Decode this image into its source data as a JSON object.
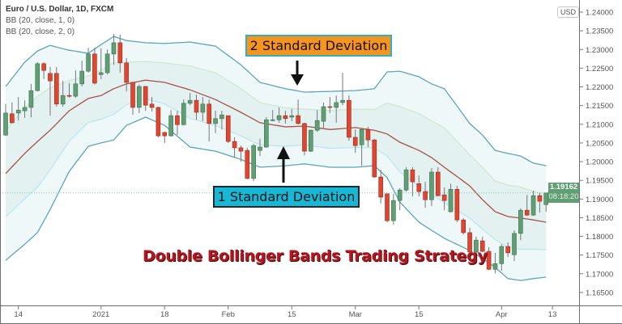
{
  "legend": {
    "symbol": "Euro / U.S. Dollar, 1D, FXCM",
    "indicator_1": "BB (20, close, 1, 0)",
    "indicator_2": "BB (20, close, 2, 0)"
  },
  "currency_badge": "USD",
  "last_price": {
    "value": "1.19162",
    "countdown": "08:18:20",
    "color": "#5f9f73"
  },
  "annotations": {
    "upper": "2 Standard Deviation",
    "lower": "1 Standard Deviation",
    "title": "Double Bollinger Bands Trading Strategy"
  },
  "colors": {
    "up": "#5f9f73",
    "down": "#e0452f",
    "outer_band": "#5aa5bb",
    "middle": "#a8504a",
    "inner_upper": "#cfe6d2",
    "inner_lower": "#bde4ee",
    "outer_fill": "#eff8f8",
    "inner_fill": "#e3f1f1",
    "annotation_upper_bg": "#f7941d",
    "annotation_lower_bg": "#16b8d6",
    "title": "#b3161e"
  },
  "chart_data": {
    "type": "candlestick",
    "y_axis": {
      "range": [
        1.1625,
        1.2425
      ],
      "ticks": [
        "1.24000",
        "1.23500",
        "1.23000",
        "1.22500",
        "1.22000",
        "1.21500",
        "1.21000",
        "1.20500",
        "1.20000",
        "1.19500",
        "1.19000",
        "1.18500",
        "1.18000",
        "1.17500",
        "1.17000",
        "1.16500"
      ],
      "side": "right"
    },
    "x_ticks": [
      {
        "label": "14",
        "date": "2020-12-14"
      },
      {
        "label": "2021",
        "date": "2021-01-04"
      },
      {
        "label": "18",
        "date": "2021-01-18"
      },
      {
        "label": "Feb",
        "date": "2021-02-01"
      },
      {
        "label": "15",
        "date": "2021-02-15"
      },
      {
        "label": "Mar",
        "date": "2021-03-01"
      },
      {
        "label": "15",
        "date": "2021-03-15"
      },
      {
        "label": "Apr",
        "date": "2021-04-01"
      },
      {
        "label": "13",
        "date": "2021-04-13"
      }
    ],
    "candles_columns": [
      "date",
      "open",
      "high",
      "low",
      "close"
    ],
    "candles": [
      [
        "2020-12-10",
        1.2071,
        1.2154,
        1.2069,
        1.213
      ],
      [
        "2020-12-11",
        1.2128,
        1.2158,
        1.2102,
        1.2104
      ],
      [
        "2020-12-14",
        1.213,
        1.2173,
        1.211,
        1.2138
      ],
      [
        "2020-12-15",
        1.2136,
        1.2164,
        1.2117,
        1.2145
      ],
      [
        "2020-12-16",
        1.2145,
        1.2208,
        1.2119,
        1.219
      ],
      [
        "2020-12-17",
        1.219,
        1.2266,
        1.2188,
        1.2262
      ],
      [
        "2020-12-18",
        1.2262,
        1.2266,
        1.2221,
        1.2244
      ],
      [
        "2020-12-21",
        1.2236,
        1.2253,
        1.2123,
        1.2216
      ],
      [
        "2020-12-22",
        1.2236,
        1.2253,
        1.2147,
        1.2154
      ],
      [
        "2020-12-23",
        1.2154,
        1.2216,
        1.2147,
        1.2177
      ],
      [
        "2020-12-24",
        1.2177,
        1.221,
        1.2171,
        1.2175
      ],
      [
        "2020-12-28",
        1.2175,
        1.2244,
        1.2171,
        1.2208
      ],
      [
        "2020-12-29",
        1.2208,
        1.227,
        1.2201,
        1.2242
      ],
      [
        "2020-12-30",
        1.2242,
        1.2305,
        1.2238,
        1.2288
      ],
      [
        "2020-12-31",
        1.2288,
        1.2305,
        1.2206,
        1.221
      ],
      [
        "2021-01-04",
        1.2233,
        1.2303,
        1.2221,
        1.2238
      ],
      [
        "2021-01-05",
        1.2238,
        1.23,
        1.2233,
        1.2288
      ],
      [
        "2021-01-06",
        1.2288,
        1.2342,
        1.2259,
        1.2318
      ],
      [
        "2021-01-07",
        1.2318,
        1.234,
        1.2238,
        1.2264
      ],
      [
        "2021-01-08",
        1.2264,
        1.2277,
        1.2188,
        1.2212
      ],
      [
        "2021-01-11",
        1.2212,
        1.2212,
        1.2125,
        1.2145
      ],
      [
        "2021-01-12",
        1.2145,
        1.2206,
        1.213,
        1.2201
      ],
      [
        "2021-01-13",
        1.2201,
        1.2203,
        1.2136,
        1.2151
      ],
      [
        "2021-01-14",
        1.2154,
        1.2173,
        1.2134,
        1.2145
      ],
      [
        "2021-01-15",
        1.2145,
        1.2147,
        1.2065,
        1.2069
      ],
      [
        "2021-01-18",
        1.2078,
        1.208,
        1.205,
        1.2069
      ],
      [
        "2021-01-19",
        1.2069,
        1.2138,
        1.2067,
        1.2123
      ],
      [
        "2021-01-20",
        1.2123,
        1.2136,
        1.2071,
        1.2099
      ],
      [
        "2021-01-21",
        1.2099,
        1.2166,
        1.2097,
        1.2156
      ],
      [
        "2021-01-22",
        1.2156,
        1.2184,
        1.2151,
        1.2164
      ],
      [
        "2021-01-25",
        1.2164,
        1.2179,
        1.2112,
        1.2132
      ],
      [
        "2021-01-26",
        1.2132,
        1.2173,
        1.2108,
        1.2154
      ],
      [
        "2021-01-27",
        1.2154,
        1.2166,
        1.2054,
        1.2102
      ],
      [
        "2021-01-28",
        1.2102,
        1.2136,
        1.2076,
        1.2115
      ],
      [
        "2021-01-29",
        1.2115,
        1.2136,
        1.2086,
        1.2125
      ],
      [
        "2021-02-01",
        1.2123,
        1.2123,
        1.205,
        1.2054
      ],
      [
        "2021-02-02",
        1.2054,
        1.2065,
        1.2011,
        1.2037
      ],
      [
        "2021-02-03",
        1.2037,
        1.2043,
        1.2,
        1.2028
      ],
      [
        "2021-02-04",
        1.203,
        1.2037,
        1.1953,
        1.1955
      ],
      [
        "2021-02-05",
        1.1955,
        1.2048,
        1.1948,
        1.2043
      ],
      [
        "2021-02-08",
        1.203,
        1.2061,
        1.2015,
        1.2039
      ],
      [
        "2021-02-09",
        1.2039,
        1.2119,
        1.2037,
        1.2112
      ],
      [
        "2021-02-10",
        1.211,
        1.2138,
        1.2108,
        1.2112
      ],
      [
        "2021-02-11",
        1.2112,
        1.2145,
        1.2104,
        1.2123
      ],
      [
        "2021-02-12",
        1.2123,
        1.2136,
        1.2102,
        1.2115
      ],
      [
        "2021-02-15",
        1.2119,
        1.2141,
        1.2108,
        1.2123
      ],
      [
        "2021-02-16",
        1.2123,
        1.2166,
        1.2099,
        1.2102
      ],
      [
        "2021-02-17",
        1.2102,
        1.2104,
        1.2017,
        1.2028
      ],
      [
        "2021-02-18",
        1.2028,
        1.2086,
        1.2026,
        1.2084
      ],
      [
        "2021-02-19",
        1.2084,
        1.2138,
        1.208,
        1.211
      ],
      [
        "2021-02-22",
        1.2108,
        1.2158,
        1.2091,
        1.2147
      ],
      [
        "2021-02-23",
        1.2147,
        1.2173,
        1.213,
        1.2145
      ],
      [
        "2021-02-24",
        1.2145,
        1.2177,
        1.2104,
        1.2158
      ],
      [
        "2021-02-25",
        1.2158,
        1.2238,
        1.2151,
        1.2164
      ],
      [
        "2021-02-26",
        1.2164,
        1.2177,
        1.2056,
        1.2065
      ],
      [
        "2021-03-01",
        1.2065,
        1.2086,
        1.2024,
        1.2043
      ],
      [
        "2021-03-02",
        1.2045,
        1.2089,
        1.1989,
        1.2086
      ],
      [
        "2021-03-03",
        1.2086,
        1.2093,
        1.2039,
        1.2058
      ],
      [
        "2021-03-04",
        1.2058,
        1.2061,
        1.1957,
        1.1959
      ],
      [
        "2021-03-05",
        1.1959,
        1.1978,
        1.1888,
        1.1905
      ],
      [
        "2021-03-08",
        1.1914,
        1.1914,
        1.1838,
        1.1842
      ],
      [
        "2021-03-09",
        1.1842,
        1.1914,
        1.1831,
        1.1896
      ],
      [
        "2021-03-10",
        1.1896,
        1.1929,
        1.187,
        1.1924
      ],
      [
        "2021-03-11",
        1.1924,
        1.1985,
        1.192,
        1.1978
      ],
      [
        "2021-03-12",
        1.1978,
        1.1985,
        1.1907,
        1.1946
      ],
      [
        "2021-03-15",
        1.1941,
        1.1963,
        1.1907,
        1.192
      ],
      [
        "2021-03-16",
        1.192,
        1.1946,
        1.1877,
        1.1898
      ],
      [
        "2021-03-17",
        1.1898,
        1.1983,
        1.1881,
        1.1972
      ],
      [
        "2021-03-18",
        1.1972,
        1.1985,
        1.1907,
        1.1909
      ],
      [
        "2021-03-19",
        1.1911,
        1.1931,
        1.187,
        1.1896
      ],
      [
        "2021-03-22",
        1.1866,
        1.1941,
        1.1864,
        1.1926
      ],
      [
        "2021-03-23",
        1.1926,
        1.1935,
        1.1838,
        1.1844
      ],
      [
        "2021-03-24",
        1.1844,
        1.1849,
        1.1805,
        1.181
      ],
      [
        "2021-03-25",
        1.181,
        1.1823,
        1.1756,
        1.1758
      ],
      [
        "2021-03-26",
        1.1758,
        1.1799,
        1.1756,
        1.179
      ],
      [
        "2021-03-29",
        1.1788,
        1.1799,
        1.1758,
        1.176
      ],
      [
        "2021-03-30",
        1.176,
        1.1771,
        1.171,
        1.1712
      ],
      [
        "2021-03-31",
        1.1712,
        1.1756,
        1.1701,
        1.1727
      ],
      [
        "2021-04-01",
        1.1727,
        1.1779,
        1.1708,
        1.1773
      ],
      [
        "2021-04-02",
        1.1773,
        1.1784,
        1.1745,
        1.1756
      ],
      [
        "2021-04-05",
        1.1751,
        1.1816,
        1.1734,
        1.1808
      ],
      [
        "2021-04-06",
        1.1808,
        1.1875,
        1.179,
        1.187
      ],
      [
        "2021-04-07",
        1.187,
        1.1911,
        1.1855,
        1.1857
      ],
      [
        "2021-04-08",
        1.1857,
        1.1922,
        1.1855,
        1.1909
      ],
      [
        "2021-04-09",
        1.1909,
        1.1916,
        1.1864,
        1.1894
      ],
      [
        "2021-04-12",
        1.1885,
        1.1916,
        1.1866,
        1.19162
      ]
    ],
    "bands_columns": [
      "date",
      "upper_2sd",
      "middle",
      "lower_2sd"
    ],
    "bands": [
      [
        "2020-12-10",
        1.2201,
        1.1968,
        1.1736
      ],
      [
        "2020-12-15",
        1.2266,
        1.2022,
        1.1779
      ],
      [
        "2020-12-17",
        1.2296,
        1.2054,
        1.181
      ],
      [
        "2020-12-21",
        1.2311,
        1.2084,
        1.1872
      ],
      [
        "2020-12-24",
        1.2298,
        1.2136,
        1.1974
      ],
      [
        "2020-12-30",
        1.229,
        1.2169,
        1.2041
      ],
      [
        "2021-01-04",
        1.2313,
        1.2177,
        1.205
      ],
      [
        "2021-01-06",
        1.2335,
        1.2195,
        1.2058
      ],
      [
        "2021-01-08",
        1.2324,
        1.2208,
        1.2097
      ],
      [
        "2021-01-13",
        1.2318,
        1.2218,
        1.2119
      ],
      [
        "2021-01-18",
        1.2316,
        1.2212,
        1.2097
      ],
      [
        "2021-01-22",
        1.232,
        1.2192,
        1.2039
      ],
      [
        "2021-01-28",
        1.2309,
        1.2166,
        1.2028
      ],
      [
        "2021-02-03",
        1.2259,
        1.2132,
        1.2006
      ],
      [
        "2021-02-08",
        1.2212,
        1.2104,
        1.1985
      ],
      [
        "2021-02-12",
        1.2195,
        1.2093,
        1.1989
      ],
      [
        "2021-02-17",
        1.2186,
        1.2095,
        1.1994
      ],
      [
        "2021-02-23",
        1.2188,
        1.2086,
        1.1985
      ],
      [
        "2021-03-01",
        1.219,
        1.2091,
        1.1985
      ],
      [
        "2021-03-04",
        1.2195,
        1.2084,
        1.1989
      ],
      [
        "2021-03-08",
        1.224,
        1.2074,
        1.1957
      ],
      [
        "2021-03-10",
        1.2242,
        1.2052,
        1.1892
      ],
      [
        "2021-03-15",
        1.2227,
        1.203,
        1.1838
      ],
      [
        "2021-03-17",
        1.2208,
        1.2011,
        1.1816
      ],
      [
        "2021-03-19",
        1.2195,
        1.1985,
        1.1795
      ],
      [
        "2021-03-25",
        1.2102,
        1.1935,
        1.1762
      ],
      [
        "2021-03-29",
        1.2071,
        1.1898,
        1.1741
      ],
      [
        "2021-03-31",
        1.203,
        1.1866,
        1.1717
      ],
      [
        "2021-04-02",
        1.2022,
        1.1853,
        1.1687
      ],
      [
        "2021-04-06",
        1.2015,
        1.1849,
        1.1682
      ],
      [
        "2021-04-08",
        1.1996,
        1.1844,
        1.1687
      ],
      [
        "2021-04-12",
        1.1989,
        1.1838,
        1.1691
      ]
    ]
  }
}
